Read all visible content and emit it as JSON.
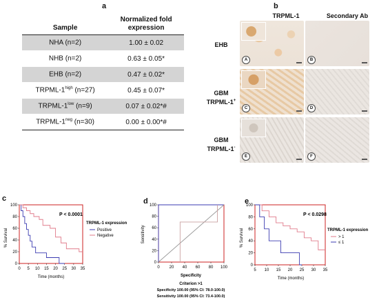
{
  "panel_a": {
    "label": "a",
    "headers": {
      "sample": "Sample",
      "fold_line1": "Normalized fold",
      "fold_line2": "expression"
    },
    "rows": [
      {
        "base": "NHA (n=2)",
        "sup": "",
        "tail": "",
        "value": "1.00 ± 0.02",
        "shaded": true
      },
      {
        "base": "NHB (n=2)",
        "sup": "",
        "tail": "",
        "value": "0.63 ± 0.05*",
        "shaded": false
      },
      {
        "base": "EHB (n=2)",
        "sup": "",
        "tail": "",
        "value": "0.47 ± 0.02*",
        "shaded": true
      },
      {
        "base": "TRPML-1",
        "sup": "high",
        "tail": " (n=27)",
        "value": "0.45 ± 0.07*",
        "shaded": false
      },
      {
        "base": "TRPML-1",
        "sup": "low",
        "tail": " (n=9)",
        "value": "0.07 ± 0.02*#",
        "shaded": true
      },
      {
        "base": "TRPML-1",
        "sup": "neg",
        "tail": " (n=30)",
        "value": "0.00 ± 0.00*#",
        "shaded": false
      }
    ]
  },
  "panel_b": {
    "label": "b",
    "col1": "TRPML-1",
    "col2": "Secondary Ab",
    "row1": "EHB",
    "row2_line1": "GBM",
    "row2_line2": "TRPML-1",
    "row2_sup": "+",
    "row3_line1": "GBM",
    "row3_line2": "TRPML-1",
    "row3_sup": "-",
    "badges": [
      "A",
      "B",
      "C",
      "D",
      "E",
      "F"
    ]
  },
  "panel_c": {
    "label": "c",
    "pvalue": "P < 0.0001",
    "legend_title": "TRPML-1 expression",
    "ylabel": "% Survival",
    "xlabel": "Time (months)"
  },
  "panel_d": {
    "label": "d",
    "ylabel": "Sensitivity",
    "xlabel": "Specificity",
    "criterion": "Criterion >1",
    "specificity": "Specificity 100.00 (95% CI: 78.0-100.0)",
    "sensitivity": "Sensitivity 100.00 (95% CI: 73.4-100.0)"
  },
  "panel_e": {
    "label": "e",
    "pvalue": "P < 0.0298",
    "legend_title": "TRPML-1 expression",
    "ylabel": "% Survival",
    "xlabel": "Time (months)"
  },
  "chart_data": [
    {
      "type": "line",
      "panel": "c",
      "xlim": [
        0,
        35
      ],
      "ylim": [
        0,
        100
      ],
      "xticks": [
        0,
        5,
        10,
        15,
        20,
        25,
        30,
        35
      ],
      "yticks": [
        0,
        20,
        40,
        60,
        80,
        100
      ],
      "series": [
        {
          "name": "Positive",
          "color": "#3a3ab0",
          "x": [
            0,
            1,
            2,
            3,
            4,
            5,
            6,
            7,
            9,
            15,
            17,
            22,
            25
          ],
          "y": [
            100,
            90,
            80,
            68,
            58,
            48,
            38,
            28,
            18,
            10,
            10,
            0,
            0
          ]
        },
        {
          "name": "Negative",
          "color": "#e07a8a",
          "x": [
            0,
            2,
            4,
            6,
            8,
            11,
            13,
            17,
            20,
            23,
            26,
            30,
            33,
            35
          ],
          "y": [
            100,
            95,
            90,
            85,
            80,
            75,
            65,
            60,
            45,
            35,
            25,
            25,
            20,
            20
          ]
        }
      ]
    },
    {
      "type": "line",
      "panel": "d",
      "xlim": [
        0,
        100
      ],
      "ylim": [
        0,
        100
      ],
      "xticks": [
        0,
        20,
        40,
        60,
        80,
        100
      ],
      "yticks": [
        0,
        20,
        40,
        60,
        80,
        100
      ],
      "series": [
        {
          "color": "#3a3ab0",
          "x": [
            0,
            0,
            100
          ],
          "y": [
            0,
            100,
            100
          ]
        },
        {
          "color": "#999999",
          "x": [
            0,
            100
          ],
          "y": [
            0,
            100
          ]
        },
        {
          "color": "#c9a0a0",
          "x": [
            33,
            33,
            90,
            90
          ],
          "y": [
            0,
            70,
            70,
            100
          ]
        }
      ]
    },
    {
      "type": "line",
      "panel": "e",
      "xlim": [
        5,
        35
      ],
      "ylim": [
        0,
        100
      ],
      "xticks": [
        5,
        10,
        15,
        20,
        25,
        30,
        35
      ],
      "yticks": [
        0,
        20,
        40,
        60,
        80,
        100
      ],
      "series": [
        {
          "name": "> 1",
          "color": "#e07a8a",
          "x": [
            5,
            8,
            11,
            14,
            17,
            20,
            23,
            26,
            29,
            32,
            35
          ],
          "y": [
            100,
            90,
            80,
            70,
            65,
            60,
            55,
            45,
            40,
            25,
            25
          ]
        },
        {
          "name": "≤ 1",
          "color": "#3a3ab0",
          "x": [
            5,
            7,
            9,
            11,
            14,
            16,
            19,
            22,
            24,
            25
          ],
          "y": [
            100,
            80,
            60,
            40,
            40,
            20,
            20,
            20,
            0,
            0
          ]
        }
      ]
    }
  ]
}
